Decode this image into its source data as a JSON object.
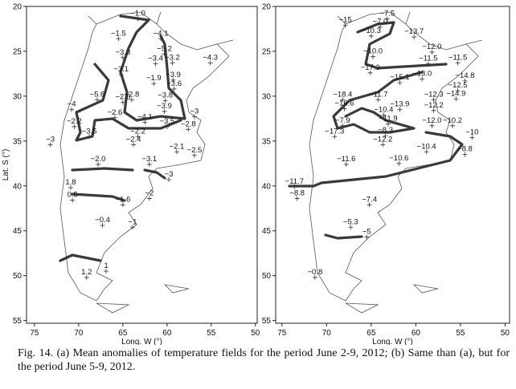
{
  "chart_data": [
    {
      "type": "map",
      "xlabel": "Long. W (°)",
      "ylabel": "Lat. S (°)",
      "xlim": [
        75.9,
        49.8
      ],
      "ylim": [
        20,
        55.3
      ],
      "xticks": [
        75,
        70,
        65,
        60,
        55,
        50
      ],
      "yticks": [
        20,
        25,
        30,
        35,
        40,
        45,
        50,
        55
      ],
      "x": [
        63.3,
        65.5,
        60.7,
        65,
        60.3,
        61.3,
        59.4,
        55.1,
        65.2,
        61.5,
        59.3,
        59.2,
        67.9,
        64,
        65,
        60.2,
        60.3,
        70.8,
        65.9,
        56.9,
        62.5,
        60,
        70.5,
        57.6,
        68.8,
        63.3,
        73.2,
        63.8,
        58.9,
        56.9,
        67.8,
        62,
        59.8,
        70.9,
        62,
        70.7,
        65,
        67.3,
        63.9,
        66.9,
        69.1
      ],
      "y": [
        21.4,
        23.6,
        23.6,
        25.7,
        25.3,
        26.4,
        26.3,
        26.3,
        27.6,
        28.6,
        28.2,
        29.2,
        30.4,
        30.4,
        30.7,
        30.5,
        31.7,
        31.5,
        32.4,
        32.3,
        32.9,
        33.4,
        33.4,
        33.7,
        34.5,
        34.5,
        35.4,
        35.4,
        36.2,
        36.6,
        37.6,
        37.6,
        39.3,
        40.2,
        41.4,
        41.6,
        42.1,
        44.4,
        44.6,
        49.5,
        50.2
      ],
      "values": [
        -1.0,
        -1.5,
        -4.1,
        -3.3,
        -5.2,
        -3.4,
        -3.2,
        -4.3,
        -3.1,
        -1.9,
        -3.9,
        -3.6,
        -5.6,
        -2.8,
        -2.6,
        -3.8,
        -3.9,
        -4,
        -2.6,
        -3,
        -4.1,
        -3.5,
        -2.2,
        -2.8,
        -3.5,
        -2.2,
        -3,
        -2.4,
        -2.1,
        -2.5,
        -2.0,
        -3.1,
        -3,
        1.8,
        -2,
        0.5,
        -1.6,
        -0.4,
        -1,
        1,
        1.2
      ],
      "value_labels": [
        "−1.0",
        "−1.5",
        "−4.1",
        "−3.3",
        "−5.2",
        "−3.4",
        "−3.2",
        "−4.3",
        "−3.1",
        "−1.9",
        "−3.9",
        "−3.6",
        "−5.6",
        "−2.8",
        "−2.6",
        "−3.8",
        "−3.9",
        "−4",
        "−2.6",
        "−3",
        "−4.1",
        "−3.5",
        "−2.2",
        "−2.8",
        "−3.5",
        "−2.2",
        "−3",
        "−2.4",
        "−2.1",
        "−2.5",
        "−2.0",
        "−3.1",
        "−3",
        "1.8",
        "−2",
        "0.5",
        "−1.6",
        "−0.4",
        "−1",
        "1",
        "1.2"
      ]
    },
    {
      "type": "map",
      "xlabel": "Long. W (°)",
      "xlim": [
        75.7,
        49.5
      ],
      "ylim": [
        20,
        55.3
      ],
      "xticks": [
        75,
        70,
        65,
        60,
        55,
        50
      ],
      "yticks": [
        20,
        25,
        30,
        35,
        40,
        45,
        50,
        55
      ],
      "x": [
        67.9,
        63.2,
        64,
        65,
        60.2,
        58.2,
        64.8,
        58.6,
        55.3,
        65.1,
        59.3,
        61.8,
        54.5,
        55.3,
        68.2,
        64.2,
        58,
        55.5,
        68,
        61.8,
        58,
        63.6,
        68.2,
        63.1,
        58.2,
        55.9,
        69.1,
        63.4,
        53.7,
        63.7,
        58.8,
        54.5,
        67.8,
        61.9,
        73.6,
        73.3,
        65.2,
        67.3,
        65.5,
        71.3
      ],
      "y": [
        22.1,
        21.4,
        22.3,
        23.3,
        23.4,
        25.1,
        25.6,
        26.4,
        26.3,
        27.4,
        28.1,
        28.5,
        28.3,
        29.4,
        30.4,
        30.4,
        30.4,
        30.3,
        31.4,
        31.5,
        31.6,
        32.1,
        33.3,
        33.1,
        33.3,
        33.3,
        34.5,
        34.4,
        34.6,
        35.4,
        36.2,
        36.5,
        37.6,
        37.5,
        40.1,
        41.4,
        42.1,
        44.6,
        45.7,
        50.2
      ],
      "values": [
        -15,
        -7.5,
        -7.0,
        -10.3,
        -13.7,
        -12.0,
        -10.0,
        -11.5,
        -11.5,
        -17.3,
        -13.0,
        -15.1,
        -14.8,
        -12.5,
        -18.4,
        -11.7,
        -12.3,
        -14.9,
        -16.6,
        -13.9,
        -12.2,
        -10.4,
        -7.9,
        -11.9,
        -12.0,
        -10.2,
        -17.3,
        -8.3,
        -10,
        -12.2,
        -10.4,
        -8.8,
        -11.6,
        -10.6,
        -11.7,
        -8.8,
        -7.4,
        -5.3,
        -5,
        -0.8
      ],
      "value_labels": [
        "−15",
        "−7.5",
        "−7.0",
        "−10.3",
        "−13.7",
        "−12.0",
        "−10.0",
        "−11.5",
        "−11.5",
        "−17.3",
        "−13.0",
        "−15.1",
        "−14.8",
        "−12.5",
        "−18.4",
        "−11.7",
        "−12.3",
        "−14.9",
        "−16.6",
        "−13.9",
        "−12.2",
        "−10.4",
        "−7.9",
        "−11.9",
        "−12.0",
        "−10.2",
        "−17.3",
        "−8.3",
        "−10",
        "−12.2",
        "−10.4",
        "−8.8",
        "−11.6",
        "−10.6",
        "−11.7",
        "−8.8",
        "−7.4",
        "−5.3",
        "−5",
        "−0.8"
      ]
    }
  ],
  "caption": "Fig. 14. (a) Mean anomalies of temperature fields for the period June 2-9, 2012; (b) Same than (a), but for the period June 5-9, 2012."
}
